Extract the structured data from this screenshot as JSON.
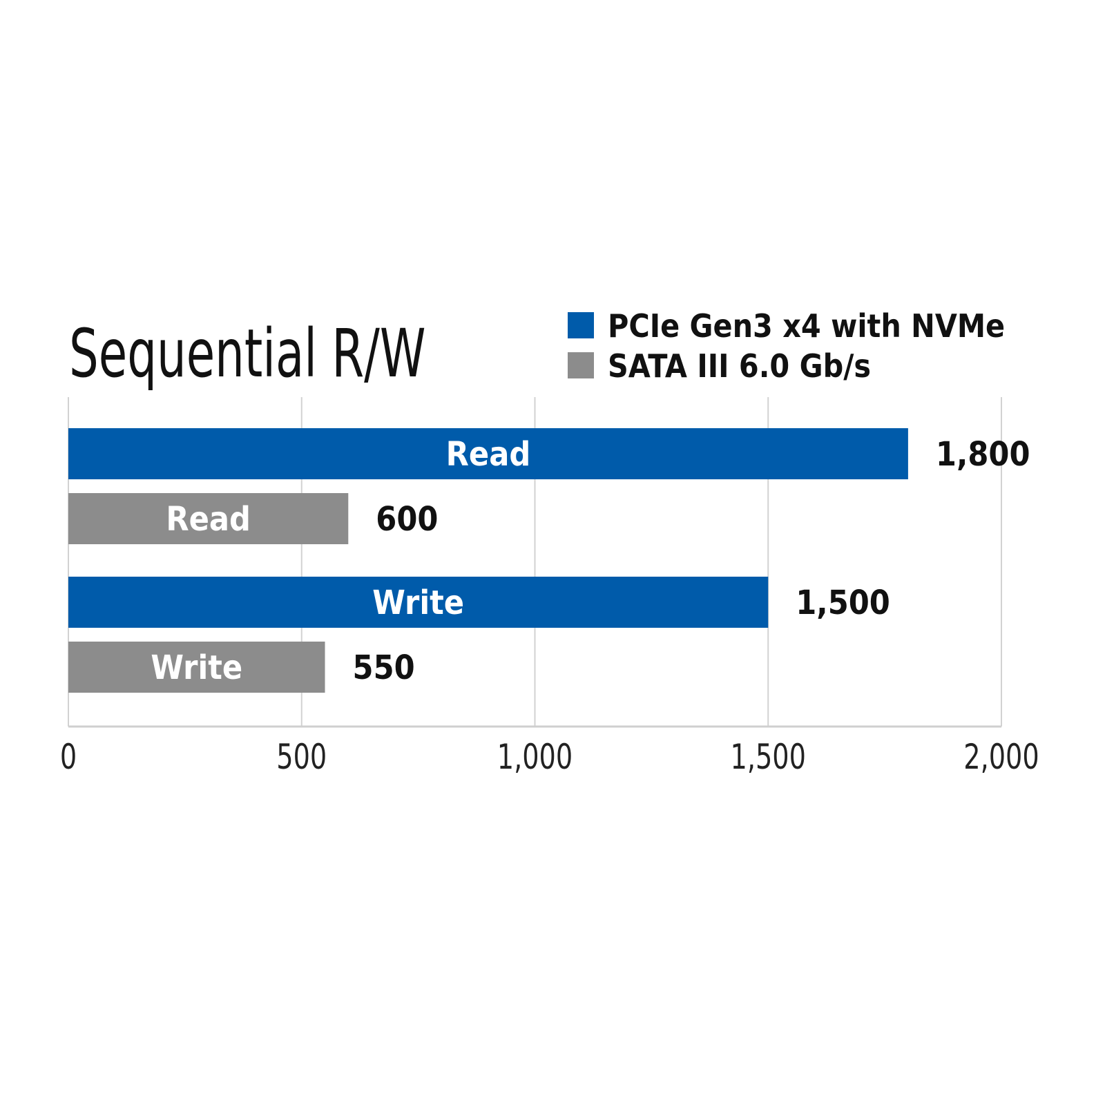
{
  "chart_data": {
    "type": "bar",
    "orientation": "horizontal",
    "title": "Sequential R/W",
    "categories": [
      "Read",
      "Write"
    ],
    "series": [
      {
        "name": "PCIe Gen3 x4 with NVMe",
        "color": "#005BAA",
        "values": [
          1800,
          1500
        ],
        "value_labels": [
          "1,800",
          "1,500"
        ]
      },
      {
        "name": "SATA III 6.0 Gb/s",
        "color": "#8C8C8C",
        "values": [
          600,
          550
        ],
        "value_labels": [
          "600",
          "550"
        ]
      }
    ],
    "xlim": [
      0,
      2000
    ],
    "xticks": [
      0,
      500,
      1000,
      1500,
      2000
    ],
    "xtick_labels": [
      "0",
      "500",
      "1,000",
      "1,500",
      "2,000"
    ],
    "grid": "vertical",
    "legend_position": "top-right",
    "xlabel": "",
    "ylabel": ""
  }
}
